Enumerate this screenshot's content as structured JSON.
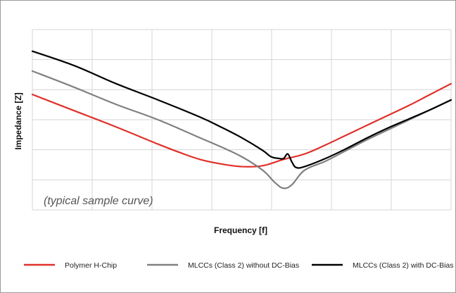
{
  "chart_data": {
    "type": "line",
    "xlabel": "Frequency [f]",
    "ylabel": "Impedance [Z]",
    "annotation": "(typical sample curve)",
    "xlim": [
      0,
      100
    ],
    "ylim": [
      0,
      100
    ],
    "grid": true,
    "legend_position": "bottom",
    "series": [
      {
        "name": "Polymer H-Chip",
        "color": "#e0302a",
        "x": [
          0,
          10,
          20,
          30,
          35,
          40,
          45,
          50,
          55,
          60,
          65,
          70,
          75,
          80,
          85,
          90,
          95,
          100
        ],
        "y": [
          64,
          55,
          46,
          36.5,
          32,
          28,
          25.5,
          24,
          24.5,
          28,
          31,
          36,
          41.5,
          47,
          52.5,
          58,
          64,
          70
        ]
      },
      {
        "name": "MLCCs (Class 2) without DC-Bias",
        "color": "#808080",
        "x": [
          0,
          10,
          20,
          30,
          40,
          45,
          50,
          55,
          58,
          60,
          62,
          65,
          70,
          75,
          80,
          85,
          90,
          95,
          100
        ],
        "y": [
          77,
          68,
          58.5,
          50,
          40,
          35,
          29.5,
          22,
          15,
          12,
          14,
          22,
          27,
          33,
          39,
          44.5,
          50,
          55.5,
          61
        ]
      },
      {
        "name": "MLCCs (Class 2) with DC-Bias",
        "color": "#000000",
        "x": [
          0,
          10,
          20,
          30,
          40,
          45,
          50,
          55,
          57,
          59,
          60,
          61,
          62,
          63,
          65,
          70,
          75,
          80,
          85,
          90,
          95,
          100
        ],
        "y": [
          88,
          80,
          70,
          61,
          51.5,
          46,
          40,
          33,
          29.5,
          28.5,
          28.5,
          31,
          26.5,
          23.5,
          24,
          28.5,
          34,
          40,
          45.5,
          50.5,
          55.5,
          61
        ]
      }
    ]
  }
}
